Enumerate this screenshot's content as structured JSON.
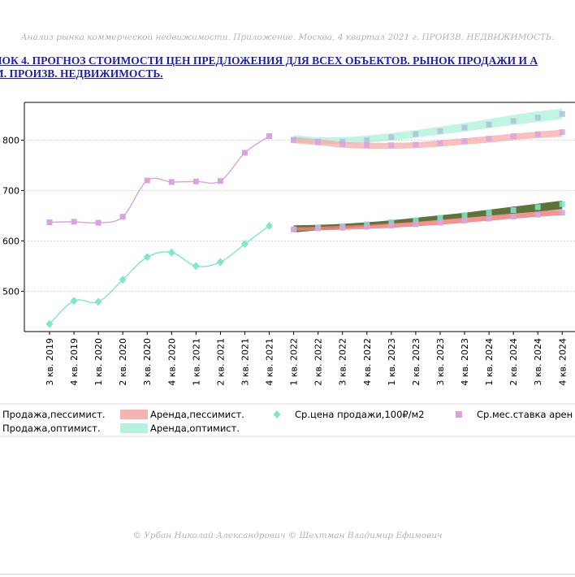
{
  "header_note": "Анализ рынка коммерческой недвижимости. Приложение.  Москва,  4 квартал 2021 г.  ПРОИЗВ. НЕДВИЖИМОСТЬ.",
  "figure_title_line1": "НОК 4. ПРОГНОЗ СТОИМОСТИ ЦЕН ПРЕДЛОЖЕНИЯ ДЛЯ ВСЕХ ОБЪЕКТОВ. РЫНОК ПРОДАЖИ И А",
  "figure_title_line2": "М. ПРОИЗВ. НЕДВИЖИМОСТЬ.",
  "footer_note": "© Урбан Николай Александрович   © Шехтман Владимир Ефимович",
  "colors": {
    "sale_pessimistic": "#f08080",
    "sale_optimistic": "#556b2f",
    "rent_pessimistic": "#f6a5a5",
    "rent_optimistic": "#a8f0d8",
    "sale_price": "#7fe8c8",
    "rent_rate": "#d9a3de"
  },
  "chart_data": {
    "type": "line",
    "categories": [
      "3 кв. 2019",
      "4 кв. 2019",
      "1 кв. 2020",
      "2 кв. 2020",
      "3 кв. 2020",
      "4 кв. 2020",
      "1 кв. 2021",
      "2 кв. 2021",
      "3 кв. 2021",
      "4 кв. 2021",
      "1 кв. 2022",
      "2 кв. 2022",
      "3 кв. 2022",
      "4 кв. 2022",
      "1 кв. 2023",
      "2 кв. 2023",
      "3 кв. 2023",
      "4 кв. 2023",
      "1 кв. 2024",
      "2 кв. 2024",
      "3 кв. 2024",
      "4 кв. 2024"
    ],
    "y_tick_labels": [
      "500",
      "600",
      "700",
      "800"
    ],
    "y_tick_values": [
      500,
      600,
      700,
      800
    ],
    "ylim": [
      420,
      875
    ],
    "grid": "horizontal dotted",
    "legend_placement": "bottom",
    "legend": [
      {
        "label": "Продажа,пессимист.",
        "kind": "band",
        "color_key": "sale_pessimistic"
      },
      {
        "label": "Аренда,пессимист.",
        "kind": "band",
        "color_key": "rent_pessimistic"
      },
      {
        "label": "Ср.цена продажи,100₽/м2",
        "kind": "marker-diamond",
        "color_key": "sale_price"
      },
      {
        "label": "Ср.мес.ставка арен",
        "kind": "marker-square",
        "color_key": "rent_rate"
      },
      {
        "label": "Продажа,оптимист.",
        "kind": "band",
        "color_key": "sale_optimistic"
      },
      {
        "label": "Аренда,оптимист.",
        "kind": "band",
        "color_key": "rent_optimistic"
      }
    ],
    "series": [
      {
        "name": "Ср.цена продажи,100₽/м2",
        "kind": "line-diamond",
        "values": [
          435,
          481,
          479,
          523,
          568,
          577,
          550,
          558,
          594,
          630,
          null,
          null,
          null,
          null,
          null,
          null,
          null,
          null,
          null,
          null,
          null,
          null
        ]
      },
      {
        "name": "Ср.мес.ставка арен",
        "kind": "line-square",
        "values": [
          637,
          638,
          636,
          648,
          720,
          717,
          718,
          719,
          775,
          808,
          null,
          null,
          null,
          null,
          null,
          null,
          null,
          null,
          null,
          null,
          null,
          null
        ]
      },
      {
        "name": "Продажа,оптимист.",
        "kind": "band",
        "lower": [
          null,
          null,
          null,
          null,
          null,
          null,
          null,
          null,
          null,
          null,
          617,
          621,
          625,
          629,
          633,
          637,
          641,
          645,
          650,
          654,
          658,
          663
        ],
        "upper": [
          null,
          null,
          null,
          null,
          null,
          null,
          null,
          null,
          null,
          null,
          631,
          632,
          634,
          637,
          641,
          646,
          651,
          656,
          662,
          668,
          674,
          680
        ],
        "markers": [
          null,
          null,
          null,
          null,
          null,
          null,
          null,
          null,
          null,
          null,
          623,
          626,
          629,
          633,
          637,
          641,
          646,
          651,
          656,
          661,
          667,
          673
        ]
      },
      {
        "name": "Продажа,пессимист.",
        "kind": "band",
        "lower": [
          null,
          null,
          null,
          null,
          null,
          null,
          null,
          null,
          null,
          null,
          620,
          621,
          622,
          624,
          626,
          629,
          632,
          636,
          640,
          644,
          648,
          651
        ],
        "upper": [
          null,
          null,
          null,
          null,
          null,
          null,
          null,
          null,
          null,
          null,
          627,
          628,
          630,
          632,
          635,
          638,
          642,
          646,
          650,
          654,
          658,
          662
        ],
        "markers": [
          null,
          null,
          null,
          null,
          null,
          null,
          null,
          null,
          null,
          null,
          623,
          625,
          626,
          628,
          630,
          633,
          636,
          640,
          644,
          648,
          652,
          656
        ]
      },
      {
        "name": "Аренда,оптимист.",
        "kind": "band",
        "lower": [
          null,
          null,
          null,
          null,
          null,
          null,
          null,
          null,
          null,
          null,
          796,
          793,
          793,
          795,
          799,
          805,
          811,
          817,
          824,
          830,
          836,
          842
        ],
        "upper": [
          null,
          null,
          null,
          null,
          null,
          null,
          null,
          null,
          null,
          null,
          810,
          806,
          806,
          809,
          814,
          820,
          827,
          834,
          842,
          850,
          857,
          863
        ],
        "markers": [
          null,
          null,
          null,
          null,
          null,
          null,
          null,
          null,
          null,
          null,
          801,
          797,
          797,
          800,
          806,
          812,
          818,
          825,
          831,
          838,
          845,
          852
        ]
      },
      {
        "name": "Аренда,пессимист.",
        "kind": "band",
        "lower": [
          null,
          null,
          null,
          null,
          null,
          null,
          null,
          null,
          null,
          null,
          794,
          790,
          785,
          783,
          783,
          784,
          787,
          791,
          795,
          800,
          804,
          807
        ],
        "upper": [
          null,
          null,
          null,
          null,
          null,
          null,
          null,
          null,
          null,
          null,
          806,
          802,
          797,
          795,
          795,
          796,
          800,
          804,
          808,
          813,
          817,
          821
        ],
        "markers": [
          null,
          null,
          null,
          null,
          null,
          null,
          null,
          null,
          null,
          null,
          800,
          796,
          792,
          790,
          790,
          791,
          794,
          798,
          803,
          808,
          812,
          816
        ]
      }
    ]
  }
}
